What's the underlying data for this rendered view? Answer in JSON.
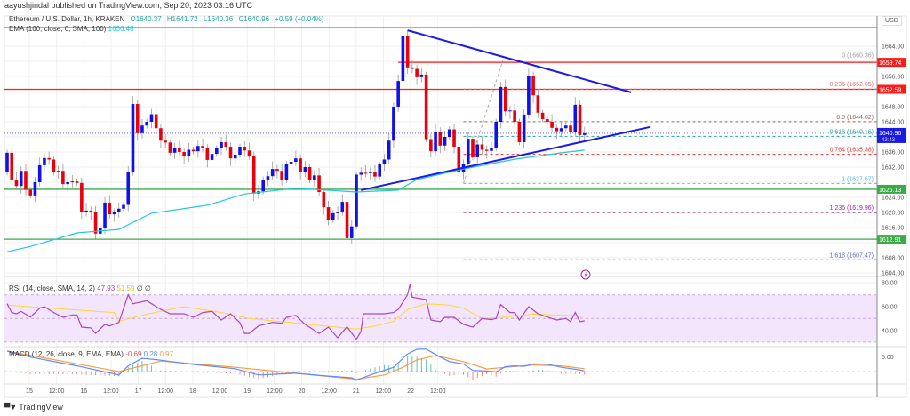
{
  "header": {
    "published": "aayushjindal published on TradingView.com, Sep 20, 2023 03:16 UTC"
  },
  "legend": {
    "symbol": "Ethereum / U.S. Dollar, 1h, KRAKEN",
    "open": "O1640.37",
    "high": "H1641.72",
    "low": "L1640.36",
    "close": "C1640.96",
    "change": "+0.59 (+0.04%)",
    "ema_label": "EMA (100, close, 0, SMA, 100)",
    "ema_value": "1636.48"
  },
  "rsi": {
    "label": "RSI (14, close, SMA, 14, 2)",
    "value": "47.93",
    "sma_value": "51.59",
    "extra1": "∅",
    "extra2": "∅",
    "ticks": [
      "80.00",
      "60.00",
      "40.00"
    ],
    "band": [
      30,
      70
    ],
    "line": [
      [
        0,
        62.5
      ],
      [
        1,
        55
      ],
      [
        2,
        54
      ],
      [
        3,
        56
      ],
      [
        5,
        51.2
      ],
      [
        7,
        58.7
      ],
      [
        8,
        60
      ],
      [
        10,
        55
      ],
      [
        12,
        51
      ],
      [
        14,
        53
      ],
      [
        15,
        53
      ],
      [
        16,
        42.7
      ],
      [
        18,
        42
      ],
      [
        19,
        37.4
      ],
      [
        21,
        45
      ],
      [
        22,
        43.7
      ],
      [
        24,
        46.7
      ],
      [
        26,
        70
      ],
      [
        27,
        62.5
      ],
      [
        30,
        65
      ],
      [
        33,
        57.7
      ],
      [
        35,
        54
      ],
      [
        38,
        54
      ],
      [
        40,
        51
      ],
      [
        42,
        55
      ],
      [
        44,
        56
      ],
      [
        46,
        48.7
      ],
      [
        48,
        54
      ],
      [
        50,
        46.5
      ],
      [
        51,
        37.4
      ],
      [
        52,
        37.4
      ],
      [
        54,
        43.7
      ],
      [
        57,
        46.7
      ],
      [
        59,
        46
      ],
      [
        60,
        51
      ],
      [
        62,
        52.6
      ],
      [
        63,
        48.7
      ],
      [
        64,
        45
      ],
      [
        67,
        37.4
      ],
      [
        69,
        42.7
      ],
      [
        71,
        33.7
      ],
      [
        73,
        43
      ],
      [
        75,
        32.4
      ],
      [
        76,
        39
      ],
      [
        76.5,
        54
      ],
      [
        81,
        54
      ],
      [
        83,
        55
      ],
      [
        84,
        57.7
      ],
      [
        86,
        70
      ],
      [
        86.5,
        78.8
      ],
      [
        87,
        68
      ],
      [
        90,
        66
      ],
      [
        91,
        48.7
      ],
      [
        93,
        47.4
      ],
      [
        94,
        51
      ],
      [
        96,
        51
      ],
      [
        98,
        45
      ],
      [
        100,
        42.7
      ],
      [
        102,
        50
      ],
      [
        104,
        49
      ],
      [
        105,
        50
      ],
      [
        106,
        61.7
      ],
      [
        108,
        55
      ],
      [
        109,
        55
      ],
      [
        110,
        48.7
      ],
      [
        112,
        60
      ],
      [
        114,
        54
      ],
      [
        116,
        51.2
      ],
      [
        118,
        48.7
      ],
      [
        120,
        50
      ],
      [
        121,
        47.4
      ],
      [
        122,
        55
      ],
      [
        123,
        47.4
      ],
      [
        124,
        48
      ]
    ],
    "signal": [
      [
        0,
        61.3
      ],
      [
        23,
        55
      ],
      [
        24,
        47.5
      ],
      [
        30,
        53.7
      ],
      [
        38,
        60
      ],
      [
        46,
        55
      ],
      [
        52,
        50
      ],
      [
        62,
        46.2
      ],
      [
        75,
        41
      ],
      [
        79,
        43.7
      ],
      [
        83,
        47.5
      ],
      [
        86,
        57.7
      ],
      [
        90,
        62.5
      ],
      [
        95,
        61.3
      ],
      [
        98,
        58.7
      ],
      [
        102,
        50
      ],
      [
        107,
        51.2
      ],
      [
        113,
        53.7
      ],
      [
        121,
        52.5
      ],
      [
        124,
        51.8
      ]
    ]
  },
  "macd": {
    "label": "MACD (12, 26, close, 9, EMA, EMA)",
    "hist_value": "-0.69",
    "macd_value": "0.28",
    "signal_value": "0.97",
    "ticks": [
      "5.00"
    ],
    "macd_line": [
      [
        0,
        7.2
      ],
      [
        5,
        5.1
      ],
      [
        15,
        2
      ],
      [
        24,
        -1.2
      ],
      [
        26,
        2
      ],
      [
        29,
        4.7
      ],
      [
        33,
        4
      ],
      [
        40,
        2.5
      ],
      [
        49,
        1
      ],
      [
        54,
        -1.2
      ],
      [
        62,
        -0.6
      ],
      [
        69,
        -1.6
      ],
      [
        74,
        -2.2
      ],
      [
        75,
        -3.1
      ],
      [
        78,
        -1.2
      ],
      [
        83,
        1.5
      ],
      [
        86,
        6.2
      ],
      [
        88,
        7.8
      ],
      [
        90,
        7.9
      ],
      [
        93,
        5.1
      ],
      [
        95,
        3.5
      ],
      [
        98,
        2.7
      ],
      [
        100,
        0.4
      ],
      [
        103,
        0.2
      ],
      [
        105,
        -0.1
      ],
      [
        107,
        1.7
      ],
      [
        109,
        2
      ],
      [
        111,
        1.8
      ],
      [
        113,
        2.7
      ],
      [
        116,
        2.6
      ],
      [
        119,
        1.5
      ],
      [
        123,
        0.6
      ],
      [
        124,
        0.2
      ]
    ],
    "signal_line": [
      [
        0,
        7.2
      ],
      [
        24,
        0
      ],
      [
        33,
        3.7
      ],
      [
        49,
        1.5
      ],
      [
        62,
        -0.6
      ],
      [
        75,
        -2.7
      ],
      [
        81,
        -1.2
      ],
      [
        85,
        1.5
      ],
      [
        88,
        4.1
      ],
      [
        92,
        5.6
      ],
      [
        98,
        3.5
      ],
      [
        103,
        0.9
      ],
      [
        107,
        1.5
      ],
      [
        113,
        2.3
      ],
      [
        119,
        2
      ],
      [
        124,
        1
      ]
    ]
  },
  "price_axis": {
    "currency": "USD",
    "ticks": [
      1664,
      1660,
      1656,
      1652,
      1648,
      1644,
      1640,
      1636,
      1632,
      1628,
      1624,
      1620,
      1616,
      1612,
      1608,
      1604
    ],
    "last_price": "1640.96",
    "countdown": "43:43"
  },
  "time_axis": {
    "labels": [
      "15",
      "12:00",
      "16",
      "12:00",
      "17",
      "12:00",
      "18",
      "12:00",
      "19",
      "12:00",
      "20",
      "12:00",
      "21",
      "12:00",
      "22",
      "12:00"
    ]
  },
  "colors": {
    "up": "#1010e8",
    "down": "#e8000b",
    "ema": "#26c6da",
    "resistance": "#ff1a1a",
    "support": "#3daa4a",
    "trendline": "#1a1ae6",
    "rsi": "#ab47bc",
    "rsi_signal": "#fdd835",
    "macd": "#5b8cff",
    "macd_signal": "#ff9a3c",
    "hist_up": "#26a69a",
    "hist_down": "#ef5350",
    "band": "#f3e5fb"
  },
  "chart_data": {
    "type": "candlestick",
    "first_open": 1630.6,
    "closes": [
      1635.8,
      1628.7,
      1627.0,
      1631.0,
      1626.0,
      1624.5,
      1628.0,
      1632.5,
      1634.4,
      1634.0,
      1630.6,
      1631.0,
      1627.5,
      1628.0,
      1628.2,
      1627.8,
      1620.0,
      1620.5,
      1620.0,
      1614.4,
      1616.0,
      1622.6,
      1619.5,
      1620.0,
      1621.0,
      1622.0,
      1630.8,
      1648.7,
      1641.0,
      1643.0,
      1644.0,
      1646.0,
      1642.3,
      1639.0,
      1638.5,
      1635.8,
      1637.0,
      1636.0,
      1634.8,
      1636.6,
      1636.2,
      1637.6,
      1637.0,
      1633.9,
      1635.5,
      1637.0,
      1638.6,
      1637.4,
      1634.3,
      1635.3,
      1637.4,
      1636.4,
      1635.0,
      1625.0,
      1625.6,
      1628.7,
      1629.6,
      1631.5,
      1631.0,
      1628.5,
      1632.9,
      1633.4,
      1634.3,
      1630.8,
      1632.0,
      1628.5,
      1629.8,
      1625.4,
      1621.4,
      1618.0,
      1619.8,
      1620.2,
      1622.8,
      1613.2,
      1616.3,
      1630.0,
      1630.5,
      1630.4,
      1630.8,
      1629.5,
      1632.7,
      1634.0,
      1639.0,
      1648.0,
      1654.8,
      1666.8,
      1658.4,
      1658.0,
      1655.8,
      1656.5,
      1639.4,
      1636.2,
      1641.4,
      1637.7,
      1640.0,
      1642.0,
      1637.4,
      1630.8,
      1632.9,
      1639.5,
      1634.6,
      1638.0,
      1636.6,
      1636.3,
      1637.0,
      1644.0,
      1653.2,
      1646.8,
      1647.0,
      1644.0,
      1638.6,
      1645.9,
      1656.2,
      1651.0,
      1646.4,
      1644.7,
      1644.0,
      1642.4,
      1641.5,
      1642.3,
      1643.0,
      1641.4,
      1648.5,
      1640.5,
      1640.96
    ],
    "ema100": [
      [
        0,
        1609.6
      ],
      [
        5,
        1611
      ],
      [
        15,
        1614.6
      ],
      [
        24,
        1615.5
      ],
      [
        31,
        1619.8
      ],
      [
        43,
        1621.9
      ],
      [
        51,
        1624.9
      ],
      [
        62,
        1626.4
      ],
      [
        75,
        1625.4
      ],
      [
        84,
        1625.9
      ],
      [
        88,
        1628.7
      ],
      [
        98,
        1631.5
      ],
      [
        109,
        1634.1
      ],
      [
        119,
        1635.8
      ],
      [
        124,
        1636.5
      ]
    ],
    "horizontal_levels": [
      {
        "price": 1668.9,
        "kind": "resistance",
        "tag": ""
      },
      {
        "price": 1659.74,
        "kind": "resistance",
        "tag": "1659.74",
        "from_index": 84
      },
      {
        "price": 1652.59,
        "kind": "resistance",
        "tag": "1652.59"
      },
      {
        "price": 1626.13,
        "kind": "support",
        "tag": "1626.13"
      },
      {
        "price": 1612.91,
        "kind": "support",
        "tag": "1612.91"
      }
    ],
    "trendlines": [
      {
        "name": "descending",
        "from": [
          86,
          1668.2
        ],
        "to": [
          134,
          1651.8
        ]
      },
      {
        "name": "ascending",
        "from": [
          76,
          1625.9
        ],
        "to": [
          138,
          1642.6
        ]
      }
    ],
    "fibonacci": {
      "from_index": 98,
      "swing": [
        [
          98,
          1627.67
        ],
        [
          106.5,
          1660.36
        ]
      ],
      "levels": [
        {
          "ratio": "0",
          "price": 1660.36,
          "label": "0 (1660.36)",
          "color": "#9e9e9e"
        },
        {
          "ratio": "0.236",
          "price": 1652.65,
          "label": "0.236 (1652.65)",
          "color": "#e57373"
        },
        {
          "ratio": "0.5",
          "price": 1644.02,
          "label": "0.5 (1644.02)",
          "color": "#8d6e63"
        },
        {
          "ratio": "0.618",
          "price": 1640.16,
          "label": "0.618 (1640.16)",
          "color": "#26a69a"
        },
        {
          "ratio": "0.764",
          "price": 1635.38,
          "label": "0.764 (1635.38)",
          "color": "#e53935"
        },
        {
          "ratio": "1",
          "price": 1627.67,
          "label": "1 (1627.67)",
          "color": "#64b5f6"
        },
        {
          "ratio": "1.236",
          "price": 1619.96,
          "label": "1.236 (1619.96)",
          "color": "#9c27b0"
        },
        {
          "ratio": "1.618",
          "price": 1607.47,
          "label": "1.618 (1607.47)",
          "color": "#5c6bc0"
        }
      ]
    }
  },
  "footer": {
    "brand": "TradingView"
  }
}
